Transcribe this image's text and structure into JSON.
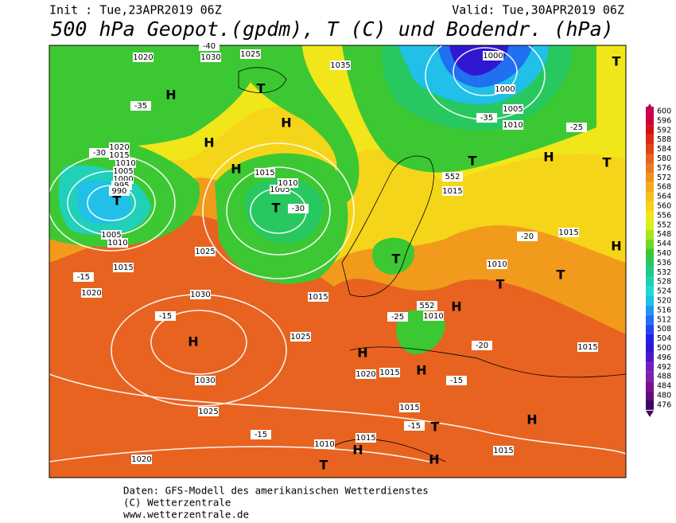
{
  "header": {
    "init": "Init : Tue,23APR2019 06Z",
    "valid": "Valid: Tue,30APR2019 06Z",
    "title": "500 hPa Geopot.(gpdm), T (C) und Bodendr. (hPa)"
  },
  "colorbar": {
    "values": [
      600,
      596,
      592,
      588,
      584,
      580,
      576,
      572,
      568,
      564,
      560,
      556,
      552,
      548,
      544,
      540,
      536,
      532,
      528,
      524,
      520,
      516,
      512,
      508,
      504,
      500,
      496,
      492,
      488,
      484,
      480,
      476
    ],
    "colors": [
      "#c8005a",
      "#d0003c",
      "#d81010",
      "#dc2a18",
      "#e0421a",
      "#e8631f",
      "#ee7a1e",
      "#f2921c",
      "#f5aa1a",
      "#f5be1a",
      "#f5d21a",
      "#f0e61a",
      "#d8f01a",
      "#a8e61e",
      "#70d828",
      "#3cc832",
      "#28c860",
      "#20c890",
      "#20d0b8",
      "#20d8d8",
      "#20c0e8",
      "#2098f0",
      "#2070f0",
      "#2048f0",
      "#2020e8",
      "#3018d0",
      "#5018c8",
      "#7020c0",
      "#8020a8",
      "#7a1090",
      "#601078",
      "#400860"
    ]
  },
  "map_labels": [
    "1020",
    "1030",
    "1025",
    "1035",
    "1000",
    "1000",
    "1005",
    "1010",
    "H",
    "T",
    "H",
    "-35",
    "-40",
    "-35",
    "-25",
    "1020",
    "1015",
    "1010",
    "1005",
    "1000",
    "995",
    "990",
    "T",
    "1005",
    "1010",
    "-30",
    "H",
    "H",
    "1015",
    "1005",
    "1010",
    "T",
    "-30",
    "1015",
    "552",
    "T",
    "H",
    "1015",
    "-20",
    "-15",
    "1025",
    "1015",
    "1020",
    "1030",
    "-15",
    "H",
    "1025",
    "1030",
    "1025",
    "-15",
    "1020",
    "1010",
    "T",
    "T",
    "552",
    "1010",
    "-25",
    "H",
    "H",
    "H",
    "T",
    "1015",
    "-15",
    "1015",
    "T",
    "H",
    "H",
    "1015",
    "-20",
    "1015",
    "T",
    "T",
    "1010",
    "1015",
    "H",
    "H",
    "T",
    "1020",
    "1015",
    "-15"
  ],
  "footer": [
    "Daten: GFS-Modell des amerikanischen Wetterdienstes",
    "(C) Wetterzentrale",
    "www.wetterzentrale.de"
  ]
}
